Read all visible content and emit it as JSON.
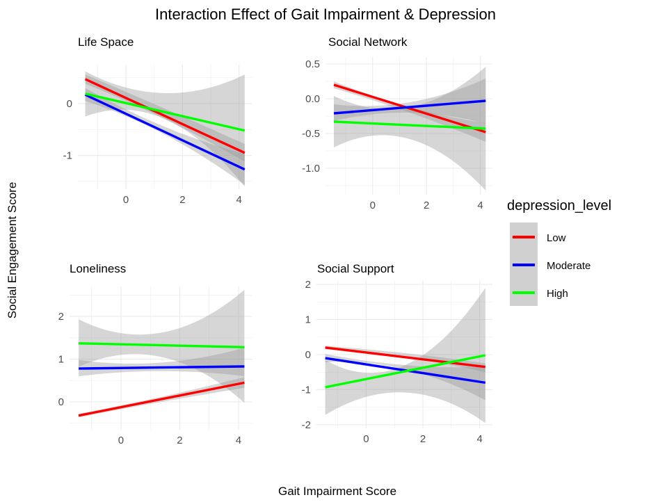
{
  "chart_data": {
    "type": "line",
    "title": "Interaction Effect of Gait Impairment & Depression",
    "xlabel": "Gait Impairment Score",
    "ylabel": "Social Engagement Score",
    "legend": {
      "title": "depression_level",
      "placement": "right",
      "entries": [
        {
          "name": "Low",
          "color": "#ff0000"
        },
        {
          "name": "Moderate",
          "color": "#0000ff"
        },
        {
          "name": "High",
          "color": "#00ff00"
        }
      ]
    },
    "grid": true,
    "panels": [
      {
        "title": "Life Space",
        "xlim": [
          -1.7,
          4.45
        ],
        "ylim": [
          -1.65,
          0.75
        ],
        "xticks": [
          0,
          2,
          4
        ],
        "yticks": [
          -1,
          0
        ],
        "ytick_labels": [
          "-1",
          "0"
        ],
        "x_range": [
          -1.44,
          4.2
        ],
        "series": [
          {
            "name": "Low",
            "y": [
              0.47,
              -0.95
            ],
            "ci_start": [
              0.38,
              0.56
            ],
            "ci_mid": [
              -0.3,
              -0.1
            ],
            "ci_end": [
              -1.12,
              -0.78
            ]
          },
          {
            "name": "Moderate",
            "y": [
              0.17,
              -1.27
            ],
            "ci_start": [
              0.05,
              0.3
            ],
            "ci_mid": [
              -0.6,
              -0.45
            ],
            "ci_end": [
              -1.57,
              -0.97
            ]
          },
          {
            "name": "High",
            "y": [
              0.19,
              -0.52
            ],
            "ci_start": [
              -0.25,
              0.62
            ],
            "ci_mid": [
              -0.3,
              0.2
            ],
            "ci_end": [
              -1.6,
              0.56
            ]
          }
        ]
      },
      {
        "title": "Social Network",
        "xlim": [
          -1.75,
          4.45
        ],
        "ylim": [
          -1.38,
          0.6
        ],
        "xticks": [
          0,
          2,
          4
        ],
        "yticks": [
          -1.0,
          -0.5,
          0.0,
          0.5
        ],
        "ytick_labels": [
          "-1.0",
          "-0.5",
          "0.0",
          "0.5"
        ],
        "x_range": [
          -1.44,
          4.2
        ],
        "series": [
          {
            "name": "Low",
            "y": [
              0.2,
              -0.48
            ],
            "ci_start": [
              0.15,
              0.25
            ],
            "ci_mid": [
              -0.2,
              -0.12
            ],
            "ci_end": [
              -0.62,
              -0.35
            ]
          },
          {
            "name": "Moderate",
            "y": [
              -0.21,
              -0.03
            ],
            "ci_start": [
              -0.32,
              -0.08
            ],
            "ci_mid": [
              -0.2,
              -0.05
            ],
            "ci_end": [
              -0.36,
              0.29
            ]
          },
          {
            "name": "High",
            "y": [
              -0.33,
              -0.43
            ],
            "ci_start": [
              -0.7,
              0.04
            ],
            "ci_mid": [
              -0.58,
              -0.12
            ],
            "ci_end": [
              -1.32,
              0.46
            ]
          }
        ]
      },
      {
        "title": "Loneliness",
        "xlim": [
          -1.75,
          4.45
        ],
        "ylim": [
          -0.65,
          2.7
        ],
        "xticks": [
          0,
          2,
          4
        ],
        "yticks": [
          0,
          1,
          2
        ],
        "ytick_labels": [
          "0",
          "1",
          "2"
        ],
        "x_range": [
          -1.44,
          4.2
        ],
        "series": [
          {
            "name": "Low",
            "y": [
              -0.32,
              0.45
            ],
            "ci_start": [
              -0.36,
              -0.28
            ],
            "ci_mid": [
              0.0,
              0.12
            ],
            "ci_end": [
              0.33,
              0.58
            ]
          },
          {
            "name": "Moderate",
            "y": [
              0.78,
              0.83
            ],
            "ci_start": [
              0.6,
              0.98
            ],
            "ci_mid": [
              0.72,
              0.92
            ],
            "ci_end": [
              0.6,
              1.27
            ]
          },
          {
            "name": "High",
            "y": [
              1.37,
              1.28
            ],
            "ci_start": [
              0.82,
              1.93
            ],
            "ci_mid": [
              1.05,
              1.62
            ],
            "ci_end": [
              -0.02,
              2.62
            ]
          }
        ]
      },
      {
        "title": "Social Support",
        "xlim": [
          -1.75,
          4.45
        ],
        "ylim": [
          -2.1,
          2.1
        ],
        "xticks": [
          0,
          2,
          4
        ],
        "yticks": [
          -2,
          -1,
          0,
          1,
          2
        ],
        "ytick_labels": [
          "-2",
          "-1",
          "0",
          "1",
          "2"
        ],
        "x_range": [
          -1.44,
          4.2
        ],
        "series": [
          {
            "name": "Low",
            "y": [
              0.2,
              -0.35
            ],
            "ci_start": [
              0.15,
              0.25
            ],
            "ci_mid": [
              -0.08,
              0.04
            ],
            "ci_end": [
              -0.5,
              -0.25
            ]
          },
          {
            "name": "Moderate",
            "y": [
              -0.1,
              -0.8
            ],
            "ci_start": [
              -0.22,
              0.02
            ],
            "ci_mid": [
              -0.42,
              -0.3
            ],
            "ci_end": [
              -1.3,
              -0.35
            ]
          },
          {
            "name": "High",
            "y": [
              -0.93,
              -0.02
            ],
            "ci_start": [
              -1.72,
              -0.15
            ],
            "ci_mid": [
              -1.08,
              -0.3
            ],
            "ci_end": [
              -1.95,
              1.9
            ]
          }
        ]
      }
    ]
  }
}
